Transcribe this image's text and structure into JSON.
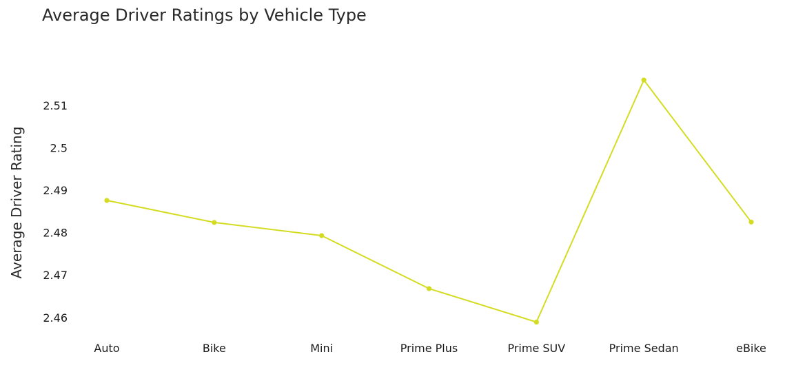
{
  "chart_data": {
    "type": "line",
    "title": "Average Driver Ratings by Vehicle Type",
    "xlabel": "",
    "ylabel": "Average Driver Rating",
    "categories": [
      "Auto",
      "Bike",
      "Mini",
      "Prime Plus",
      "Prime SUV",
      "Prime Sedan",
      "eBike"
    ],
    "series": [
      {
        "values": [
          2.4876,
          2.4824,
          2.4793,
          2.4668,
          2.4589,
          2.516,
          2.4825
        ],
        "color": "#d4dc22"
      }
    ],
    "yticks": [
      2.46,
      2.47,
      2.48,
      2.49,
      2.5,
      2.51
    ],
    "ytick_labels": [
      "2.46",
      "2.47",
      "2.48",
      "2.49",
      "2.5",
      "2.51"
    ],
    "ylim": [
      2.4572,
      2.5235
    ],
    "grid": false,
    "legend": "none"
  }
}
